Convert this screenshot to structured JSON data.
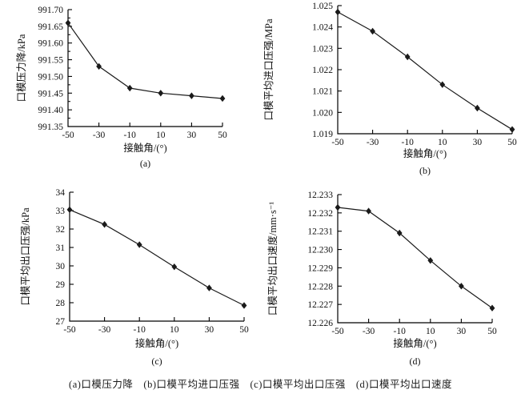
{
  "figure": {
    "caption": "(a)口模压力降　(b)口模平均进口压强　(c)口模平均出口压强　(d)口模平均出口速度"
  },
  "chart_data": [
    {
      "type": "line",
      "panel_label": "(a)",
      "xlabel": "接触角/(°)",
      "ylabel": "口模压力降/kPa",
      "x": [
        -50,
        -30,
        -10,
        10,
        30,
        50
      ],
      "values": [
        991.66,
        991.53,
        991.465,
        991.45,
        991.442,
        991.434
      ],
      "xlim": [
        -50,
        50
      ],
      "ylim": [
        991.35,
        991.7
      ],
      "xticks": [
        "-50",
        "-30",
        "-10",
        "10",
        "30",
        "50"
      ],
      "yticks": [
        "991.70",
        "991.65",
        "991.60",
        "991.55",
        "991.50",
        "991.45",
        "991.40",
        "991.35"
      ],
      "minor_yticks": true,
      "grid": false,
      "legend": "none",
      "marker": "diamond",
      "line_color": "#1a1a1a"
    },
    {
      "type": "line",
      "panel_label": "(b)",
      "xlabel": "接触角/(°)",
      "ylabel": "口模平均进口压强/MPa",
      "x": [
        -50,
        -30,
        -10,
        10,
        30,
        50
      ],
      "values": [
        1.0247,
        1.0238,
        1.0226,
        1.0213,
        1.0202,
        1.0192
      ],
      "xlim": [
        -50,
        50
      ],
      "ylim": [
        1.019,
        1.025
      ],
      "xticks": [
        "-50",
        "-30",
        "-10",
        "10",
        "30",
        "50"
      ],
      "yticks": [
        "1.025",
        "1.024",
        "1.023",
        "1.022",
        "1.021",
        "1.020",
        "1.019"
      ],
      "minor_yticks": false,
      "grid": false,
      "legend": "none",
      "marker": "diamond",
      "line_color": "#1a1a1a"
    },
    {
      "type": "line",
      "panel_label": "(c)",
      "xlabel": "接触角/(°)",
      "ylabel": "口模平均出口压强/kPa",
      "x": [
        -50,
        -30,
        -10,
        10,
        30,
        50
      ],
      "values": [
        33.05,
        32.25,
        31.15,
        29.95,
        28.8,
        27.85
      ],
      "xlim": [
        -50,
        50
      ],
      "ylim": [
        27,
        34
      ],
      "xticks": [
        "-50",
        "-30",
        "-10",
        "10",
        "30",
        "50"
      ],
      "yticks": [
        "34",
        "33",
        "32",
        "31",
        "30",
        "29",
        "28",
        "27"
      ],
      "minor_yticks": false,
      "grid": false,
      "legend": "none",
      "marker": "diamond",
      "line_color": "#1a1a1a"
    },
    {
      "type": "line",
      "panel_label": "(d)",
      "xlabel": "接触角/(°)",
      "ylabel": "口模平均出口速度/mm·s⁻¹",
      "x": [
        -50,
        -30,
        -10,
        10,
        30,
        50
      ],
      "values": [
        12.2323,
        12.2321,
        12.2309,
        12.2294,
        12.228,
        12.2268
      ],
      "xlim": [
        -50,
        50
      ],
      "ylim": [
        12.226,
        12.233
      ],
      "xticks": [
        "-50",
        "-30",
        "-10",
        "10",
        "30",
        "50"
      ],
      "yticks": [
        "12.233",
        "12.232",
        "12.231",
        "12.230",
        "12.229",
        "12.228",
        "12.227",
        "12.226"
      ],
      "minor_yticks": false,
      "grid": false,
      "legend": "none",
      "marker": "diamond",
      "line_color": "#1a1a1a"
    }
  ]
}
